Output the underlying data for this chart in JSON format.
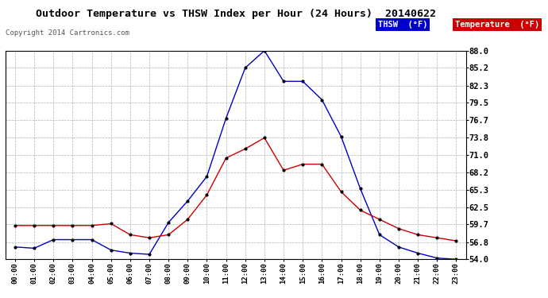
{
  "title": "Outdoor Temperature vs THSW Index per Hour (24 Hours)  20140622",
  "copyright": "Copyright 2014 Cartronics.com",
  "hours": [
    "00:00",
    "01:00",
    "02:00",
    "03:00",
    "04:00",
    "05:00",
    "06:00",
    "07:00",
    "08:00",
    "09:00",
    "10:00",
    "11:00",
    "12:00",
    "13:00",
    "14:00",
    "15:00",
    "16:00",
    "17:00",
    "18:00",
    "19:00",
    "20:00",
    "21:00",
    "22:00",
    "23:00"
  ],
  "thsw": [
    56.0,
    55.8,
    57.2,
    57.2,
    57.2,
    55.5,
    55.0,
    54.8,
    60.0,
    63.5,
    67.5,
    77.0,
    85.2,
    88.0,
    83.0,
    83.0,
    80.0,
    74.0,
    65.5,
    58.0,
    56.0,
    55.0,
    54.2,
    54.0
  ],
  "temp": [
    59.5,
    59.5,
    59.5,
    59.5,
    59.5,
    59.8,
    58.0,
    57.5,
    58.0,
    60.5,
    64.5,
    70.5,
    72.0,
    73.8,
    68.5,
    69.5,
    69.5,
    65.0,
    62.0,
    60.5,
    59.0,
    58.0,
    57.5,
    57.0
  ],
  "thsw_color": "#0000cc",
  "temp_color": "#cc0000",
  "background_color": "#ffffff",
  "grid_color": "#aaaaaa",
  "yticks": [
    54.0,
    56.8,
    59.7,
    62.5,
    65.3,
    68.2,
    71.0,
    73.8,
    76.7,
    79.5,
    82.3,
    85.2,
    88.0
  ],
  "ymin": 54.0,
  "ymax": 88.0,
  "legend_thsw_bg": "#0000cc",
  "legend_temp_bg": "#cc0000",
  "legend_thsw_text": "THSW  (°F)",
  "legend_temp_text": "Temperature  (°F)"
}
